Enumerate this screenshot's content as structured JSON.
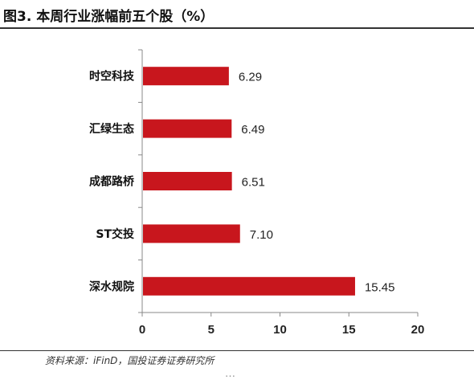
{
  "header": {
    "title": "图3. 本周行业涨幅前五个股（%）"
  },
  "footer": {
    "source": "资料来源：iFinD，国投证券证券研究所",
    "cutoff_text": "…"
  },
  "chart_data": {
    "type": "bar",
    "orientation": "horizontal",
    "title": "",
    "categories": [
      "时空科技",
      "汇绿生态",
      "成都路桥",
      "ST交投",
      "深水规院"
    ],
    "values": [
      6.29,
      6.49,
      6.51,
      7.1,
      15.45
    ],
    "value_labels": [
      "6.29",
      "6.49",
      "6.51",
      "7.10",
      "15.45"
    ],
    "xticks": [
      "0",
      "5",
      "10",
      "15",
      "20"
    ],
    "xlim": [
      0,
      20
    ],
    "bar_color": "#c8161d",
    "grid": false,
    "legend": "none"
  }
}
